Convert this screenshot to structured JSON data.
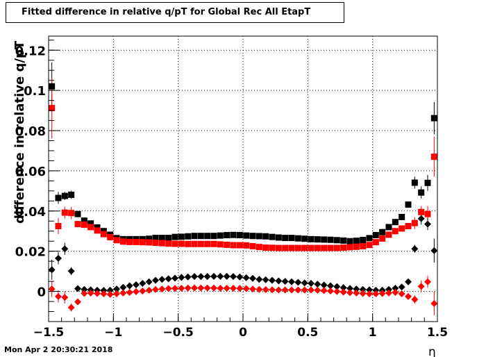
{
  "chart_data": {
    "type": "scatter",
    "title": "Fitted difference in relative q/pT for Global Rec All EtapT",
    "xlabel": "η",
    "ylabel": "difference in relative q/pT",
    "xlim": [
      -1.5,
      1.5
    ],
    "ylim": [
      -0.015,
      0.127
    ],
    "grid": true,
    "x_ticks": [
      -1.5,
      -1,
      -0.5,
      0,
      0.5,
      1,
      1.5
    ],
    "x_tick_labels": [
      "−1.5",
      "−1",
      "−0.5",
      "0",
      "0.5",
      "1",
      "1.5"
    ],
    "y_ticks": [
      0,
      0.02,
      0.04,
      0.06,
      0.08,
      0.1,
      0.12
    ],
    "y_tick_labels": [
      "0",
      "0.02",
      "0.04",
      "0.06",
      "0.08",
      "0.1",
      "0.12"
    ],
    "series": [
      {
        "marker": "square",
        "color": "#000000",
        "x": [
          -1.475,
          -1.425,
          -1.375,
          -1.325,
          -1.275,
          -1.225,
          -1.175,
          -1.125,
          -1.075,
          -1.025,
          -0.975,
          -0.925,
          -0.875,
          -0.825,
          -0.775,
          -0.725,
          -0.675,
          -0.625,
          -0.575,
          -0.525,
          -0.475,
          -0.425,
          -0.375,
          -0.325,
          -0.275,
          -0.225,
          -0.175,
          -0.125,
          -0.075,
          -0.025,
          0.025,
          0.075,
          0.125,
          0.175,
          0.225,
          0.275,
          0.325,
          0.375,
          0.425,
          0.475,
          0.525,
          0.575,
          0.625,
          0.675,
          0.725,
          0.775,
          0.825,
          0.875,
          0.925,
          0.975,
          1.025,
          1.075,
          1.125,
          1.175,
          1.225,
          1.275,
          1.325,
          1.375,
          1.425,
          1.475
        ],
        "y": [
          0.102,
          0.0465,
          0.0475,
          0.0481,
          0.0385,
          0.0352,
          0.0338,
          0.0318,
          0.03,
          0.0282,
          0.0265,
          0.026,
          0.026,
          0.026,
          0.026,
          0.0262,
          0.0266,
          0.0266,
          0.0266,
          0.0271,
          0.0272,
          0.0274,
          0.0276,
          0.0276,
          0.0276,
          0.0276,
          0.0278,
          0.028,
          0.0281,
          0.028,
          0.0278,
          0.0276,
          0.0275,
          0.0274,
          0.0271,
          0.0268,
          0.0266,
          0.0266,
          0.0264,
          0.0262,
          0.026,
          0.0259,
          0.0258,
          0.0257,
          0.0255,
          0.0253,
          0.025,
          0.0252,
          0.0256,
          0.0265,
          0.028,
          0.0295,
          0.032,
          0.0345,
          0.037,
          0.0432,
          0.0541,
          0.0492,
          0.054,
          0.0862
        ],
        "err": [
          0.012,
          0.003,
          0.002,
          0.002,
          0.001,
          0.0008,
          0.0007,
          0.0006,
          0.0005,
          0.0005,
          0.0005,
          0.0004,
          0.0004,
          0.0004,
          0.0004,
          0.0004,
          0.0004,
          0.0004,
          0.0004,
          0.0004,
          0.0004,
          0.0004,
          0.0004,
          0.0004,
          0.0004,
          0.0004,
          0.0004,
          0.0004,
          0.0004,
          0.0004,
          0.0004,
          0.0004,
          0.0004,
          0.0004,
          0.0004,
          0.0004,
          0.0004,
          0.0004,
          0.0004,
          0.0004,
          0.0004,
          0.0004,
          0.0004,
          0.0004,
          0.0004,
          0.0004,
          0.0004,
          0.0004,
          0.0004,
          0.0005,
          0.0005,
          0.0006,
          0.0007,
          0.0008,
          0.001,
          0.0015,
          0.003,
          0.003,
          0.004,
          0.008
        ]
      },
      {
        "marker": "square",
        "color": "#ff0000",
        "x": [
          -1.475,
          -1.425,
          -1.375,
          -1.325,
          -1.275,
          -1.225,
          -1.175,
          -1.125,
          -1.075,
          -1.025,
          -0.975,
          -0.925,
          -0.875,
          -0.825,
          -0.775,
          -0.725,
          -0.675,
          -0.625,
          -0.575,
          -0.525,
          -0.475,
          -0.425,
          -0.375,
          -0.325,
          -0.275,
          -0.225,
          -0.175,
          -0.125,
          -0.075,
          -0.025,
          0.025,
          0.075,
          0.125,
          0.175,
          0.225,
          0.275,
          0.325,
          0.375,
          0.425,
          0.475,
          0.525,
          0.575,
          0.625,
          0.675,
          0.725,
          0.775,
          0.825,
          0.875,
          0.925,
          0.975,
          1.025,
          1.075,
          1.125,
          1.175,
          1.225,
          1.275,
          1.325,
          1.375,
          1.425,
          1.475
        ],
        "y": [
          0.0912,
          0.0325,
          0.0392,
          0.039,
          0.0335,
          0.0332,
          0.032,
          0.0303,
          0.0285,
          0.027,
          0.0255,
          0.0248,
          0.0246,
          0.0246,
          0.0245,
          0.0244,
          0.0242,
          0.024,
          0.0238,
          0.0237,
          0.0237,
          0.0236,
          0.0236,
          0.0236,
          0.0236,
          0.0236,
          0.0234,
          0.0232,
          0.023,
          0.023,
          0.0229,
          0.0225,
          0.0221,
          0.0218,
          0.0217,
          0.0216,
          0.0216,
          0.0216,
          0.0216,
          0.0216,
          0.0216,
          0.0216,
          0.0216,
          0.0216,
          0.0216,
          0.0218,
          0.022,
          0.0222,
          0.0225,
          0.0231,
          0.0245,
          0.0263,
          0.0282,
          0.03,
          0.0313,
          0.0325,
          0.034,
          0.0395,
          0.0385,
          0.067
        ],
        "err": [
          0.015,
          0.004,
          0.003,
          0.003,
          0.0012,
          0.0008,
          0.0007,
          0.0006,
          0.0005,
          0.0005,
          0.0005,
          0.0004,
          0.0004,
          0.0004,
          0.0004,
          0.0004,
          0.0004,
          0.0004,
          0.0004,
          0.0004,
          0.0004,
          0.0004,
          0.0004,
          0.0004,
          0.0004,
          0.0004,
          0.0004,
          0.0004,
          0.0004,
          0.0004,
          0.0004,
          0.0004,
          0.0004,
          0.0004,
          0.0004,
          0.0004,
          0.0004,
          0.0004,
          0.0004,
          0.0004,
          0.0004,
          0.0004,
          0.0004,
          0.0004,
          0.0004,
          0.0004,
          0.0004,
          0.0004,
          0.0004,
          0.0005,
          0.0005,
          0.0006,
          0.0007,
          0.0008,
          0.001,
          0.0015,
          0.003,
          0.003,
          0.004,
          0.01
        ]
      },
      {
        "marker": "diamond",
        "color": "#000000",
        "x": [
          -1.475,
          -1.425,
          -1.375,
          -1.325,
          -1.275,
          -1.225,
          -1.175,
          -1.125,
          -1.075,
          -1.025,
          -0.975,
          -0.925,
          -0.875,
          -0.825,
          -0.775,
          -0.725,
          -0.675,
          -0.625,
          -0.575,
          -0.525,
          -0.475,
          -0.425,
          -0.375,
          -0.325,
          -0.275,
          -0.225,
          -0.175,
          -0.125,
          -0.075,
          -0.025,
          0.025,
          0.075,
          0.125,
          0.175,
          0.225,
          0.275,
          0.325,
          0.375,
          0.425,
          0.475,
          0.525,
          0.575,
          0.625,
          0.675,
          0.725,
          0.775,
          0.825,
          0.875,
          0.925,
          0.975,
          1.025,
          1.075,
          1.125,
          1.175,
          1.225,
          1.275,
          1.325,
          1.375,
          1.425,
          1.475
        ],
        "y": [
          0.0108,
          0.0165,
          0.0212,
          0.0101,
          0.0014,
          0.001,
          0.0008,
          0.0006,
          0.0005,
          0.0006,
          0.0012,
          0.002,
          0.0028,
          0.0033,
          0.004,
          0.0048,
          0.0055,
          0.006,
          0.0063,
          0.0066,
          0.007,
          0.0072,
          0.0074,
          0.0074,
          0.0074,
          0.0075,
          0.0075,
          0.0075,
          0.0074,
          0.0072,
          0.0068,
          0.0065,
          0.006,
          0.0058,
          0.0055,
          0.0052,
          0.005,
          0.0048,
          0.0045,
          0.0042,
          0.004,
          0.0036,
          0.0032,
          0.0028,
          0.0024,
          0.0019,
          0.0015,
          0.0012,
          0.001,
          0.0008,
          0.0006,
          0.0006,
          0.001,
          0.0016,
          0.0022,
          0.0048,
          0.0212,
          0.0362,
          0.0335,
          0.0203
        ],
        "err": [
          0.005,
          0.003,
          0.003,
          0.002,
          0.001,
          0.0006,
          0.0005,
          0.0004,
          0.0004,
          0.0004,
          0.0004,
          0.0003,
          0.0003,
          0.0003,
          0.0003,
          0.0003,
          0.0003,
          0.0003,
          0.0003,
          0.0003,
          0.0003,
          0.0003,
          0.0003,
          0.0003,
          0.0003,
          0.0003,
          0.0003,
          0.0003,
          0.0003,
          0.0003,
          0.0003,
          0.0003,
          0.0003,
          0.0003,
          0.0003,
          0.0003,
          0.0003,
          0.0003,
          0.0003,
          0.0003,
          0.0003,
          0.0003,
          0.0003,
          0.0003,
          0.0003,
          0.0003,
          0.0003,
          0.0003,
          0.0003,
          0.0004,
          0.0004,
          0.0004,
          0.0005,
          0.0006,
          0.0008,
          0.001,
          0.002,
          0.003,
          0.003,
          0.006
        ]
      },
      {
        "marker": "diamond",
        "color": "#ff0000",
        "x": [
          -1.475,
          -1.425,
          -1.375,
          -1.325,
          -1.275,
          -1.225,
          -1.175,
          -1.125,
          -1.075,
          -1.025,
          -0.975,
          -0.925,
          -0.875,
          -0.825,
          -0.775,
          -0.725,
          -0.675,
          -0.625,
          -0.575,
          -0.525,
          -0.475,
          -0.425,
          -0.375,
          -0.325,
          -0.275,
          -0.225,
          -0.175,
          -0.125,
          -0.075,
          -0.025,
          0.025,
          0.075,
          0.125,
          0.175,
          0.225,
          0.275,
          0.325,
          0.375,
          0.425,
          0.475,
          0.525,
          0.575,
          0.625,
          0.675,
          0.725,
          0.775,
          0.825,
          0.875,
          0.925,
          0.975,
          1.025,
          1.075,
          1.125,
          1.175,
          1.225,
          1.275,
          1.325,
          1.375,
          1.425,
          1.475
        ],
        "y": [
          0.0012,
          -0.0025,
          -0.003,
          -0.008,
          -0.0052,
          -0.001,
          -0.0008,
          -0.001,
          -0.0012,
          -0.0015,
          -0.0012,
          -0.0008,
          -0.0005,
          -0.0001,
          0.0002,
          0.0006,
          0.001,
          0.0012,
          0.0014,
          0.0015,
          0.0016,
          0.0017,
          0.0017,
          0.0017,
          0.0017,
          0.0017,
          0.0016,
          0.0016,
          0.0016,
          0.0015,
          0.0014,
          0.0012,
          0.001,
          0.0009,
          0.0008,
          0.0007,
          0.0007,
          0.0007,
          0.0007,
          0.0007,
          0.0007,
          0.0006,
          0.0004,
          0.0002,
          0.0,
          -0.0003,
          -0.0006,
          -0.0008,
          -0.001,
          -0.0012,
          -0.0012,
          -0.001,
          -0.0008,
          -0.0005,
          -0.0012,
          -0.0025,
          -0.004,
          0.0025,
          0.0048,
          -0.006
        ],
        "err": [
          0.004,
          0.003,
          0.003,
          0.002,
          0.0012,
          0.0006,
          0.0005,
          0.0004,
          0.0004,
          0.0004,
          0.0004,
          0.0003,
          0.0003,
          0.0003,
          0.0003,
          0.0003,
          0.0003,
          0.0003,
          0.0003,
          0.0003,
          0.0003,
          0.0003,
          0.0003,
          0.0003,
          0.0003,
          0.0003,
          0.0003,
          0.0003,
          0.0003,
          0.0003,
          0.0003,
          0.0003,
          0.0003,
          0.0003,
          0.0003,
          0.0003,
          0.0003,
          0.0003,
          0.0003,
          0.0003,
          0.0003,
          0.0003,
          0.0003,
          0.0003,
          0.0003,
          0.0003,
          0.0003,
          0.0003,
          0.0003,
          0.0004,
          0.0004,
          0.0004,
          0.0005,
          0.0006,
          0.0008,
          0.001,
          0.002,
          0.003,
          0.003,
          0.006
        ]
      }
    ]
  },
  "footer": {
    "timestamp": "Mon Apr  2 20:30:21 2018"
  }
}
